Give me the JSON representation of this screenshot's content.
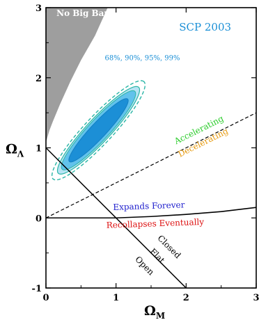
{
  "chart_data": {
    "type": "scatter",
    "title": "SCP 2003",
    "xlabel_main": "Ω",
    "xlabel_sub": "M",
    "ylabel_main": "Ω",
    "ylabel_sub": "Λ",
    "xlim": [
      0,
      3
    ],
    "ylim": [
      -1,
      3
    ],
    "xticks": [
      "0",
      "1",
      "2",
      "3"
    ],
    "yticks": [
      "-1",
      "0",
      "1",
      "2",
      "3"
    ],
    "grid": false,
    "confidence_levels": "68%, 90%, 95%, 99%",
    "contours": {
      "center": [
        0.75,
        1.25
      ],
      "angle_deg": 47,
      "levels": [
        {
          "name": "68%",
          "a": 0.61,
          "b": 0.11
        },
        {
          "name": "90%",
          "a": 0.76,
          "b": 0.15
        },
        {
          "name": "95%",
          "a": 0.84,
          "b": 0.17
        },
        {
          "name": "99%",
          "a": 0.95,
          "b": 0.2
        }
      ]
    },
    "no_big_bang": {
      "label": "No Big Bang",
      "boundary": [
        [
          0,
          1.08
        ],
        [
          0.05,
          1.25
        ],
        [
          0.1,
          1.38
        ],
        [
          0.2,
          1.62
        ],
        [
          0.35,
          1.95
        ],
        [
          0.5,
          2.25
        ],
        [
          0.7,
          2.6
        ],
        [
          0.88,
          3.0
        ]
      ]
    },
    "lines": [
      {
        "name": "Flat",
        "points": [
          [
            0,
            1
          ],
          [
            2,
            -1
          ]
        ]
      },
      {
        "name": "Accelerating/Decelerating",
        "points": [
          [
            0,
            0
          ],
          [
            3,
            1.5
          ]
        ]
      },
      {
        "name": "Expands Forever/Recollapses Eventually",
        "points": [
          [
            0,
            0
          ],
          [
            1,
            0
          ],
          [
            1.5,
            0.02
          ],
          [
            2,
            0.05
          ],
          [
            2.5,
            0.09
          ],
          [
            3,
            0.15
          ]
        ]
      }
    ],
    "annotations": [
      {
        "text": "Accelerating",
        "x": 2.2,
        "y": 1.22,
        "angle": -26.5,
        "color": "#2bcc2b"
      },
      {
        "text": "Decelerating",
        "x": 2.26,
        "y": 1.04,
        "angle": -26.5,
        "color": "#e69a10"
      },
      {
        "text": "Expands Forever",
        "x": 1.47,
        "y": 0.13,
        "angle": -2,
        "color": "#1b1bcc"
      },
      {
        "text": "Recollapses Eventually",
        "x": 1.56,
        "y": -0.12,
        "angle": -2,
        "color": "#dd1111"
      },
      {
        "text": "Closed",
        "x": 1.73,
        "y": -0.44,
        "angle": 45,
        "color": "#000000"
      },
      {
        "text": "Flat",
        "x": 1.56,
        "y": -0.57,
        "angle": 45,
        "color": "#000000"
      },
      {
        "text": "Open",
        "x": 1.38,
        "y": -0.71,
        "angle": 45,
        "color": "#000000"
      }
    ],
    "colors": {
      "c68": "#1c8fd6",
      "c90": "#62c2ec",
      "c95": "#b7e4f4",
      "c99_line": "#2ab5a6",
      "no_big_bang": "#9e9e9e",
      "title": "#1a8fd6",
      "cl_text": "#1a8fd6"
    }
  }
}
